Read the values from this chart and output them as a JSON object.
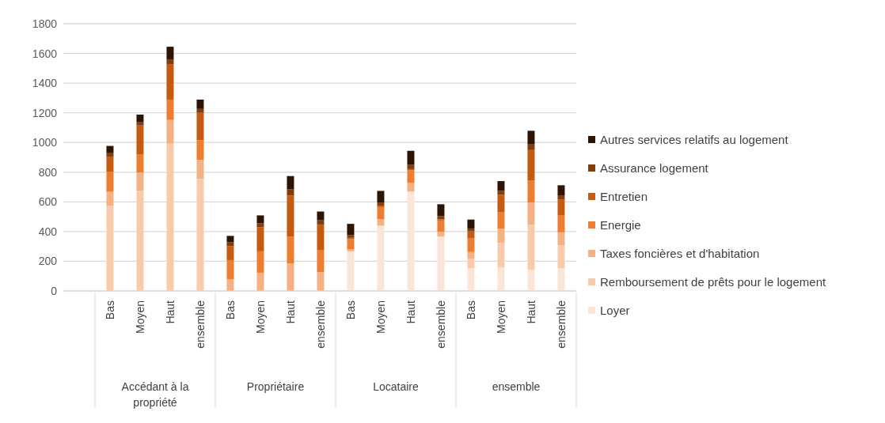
{
  "chart_data": {
    "type": "bar",
    "stacked": true,
    "categories": [
      "Bas",
      "Moyen",
      "Haut",
      "ensemble",
      "Bas",
      "Moyen",
      "Haut",
      "ensemble",
      "Bas",
      "Moyen",
      "Haut",
      "ensemble",
      "Bas",
      "Moyen",
      "Haut",
      "ensemble"
    ],
    "annotations": [
      "Accédant à la propriété",
      "Propriétaire",
      "Locataire",
      "ensemble"
    ],
    "series": [
      {
        "name": "Loyer",
        "color": "#fbe5d6",
        "values": [
          0,
          0,
          0,
          0,
          0,
          0,
          0,
          0,
          267,
          440,
          669,
          367,
          154,
          159,
          144,
          154
        ]
      },
      {
        "name": "Remboursement de prêts pour le logement",
        "color": "#f8cbad",
        "values": [
          573,
          674,
          992,
          755,
          0,
          0,
          0,
          0,
          0,
          0,
          0,
          0,
          64,
          165,
          303,
          154
        ]
      },
      {
        "name": "Taxes foncières et d'habitation",
        "color": "#f4b183",
        "values": [
          95,
          123,
          160,
          127,
          80,
          123,
          185,
          128,
          14,
          43,
          58,
          31,
          44,
          95,
          149,
          87
        ]
      },
      {
        "name": "Energie",
        "color": "#ed7d31",
        "values": [
          134,
          121,
          137,
          133,
          128,
          144,
          182,
          149,
          69,
          82,
          85,
          77,
          95,
          111,
          147,
          116
        ]
      },
      {
        "name": "Entretien",
        "color": "#c55a11",
        "values": [
          100,
          197,
          239,
          185,
          93,
          163,
          276,
          168,
          8,
          10,
          9,
          8,
          45,
          118,
          206,
          106
        ]
      },
      {
        "name": "Assurance logement",
        "color": "#843c0c",
        "values": [
          26,
          21,
          29,
          26,
          28,
          26,
          41,
          31,
          18,
          21,
          28,
          21,
          19,
          26,
          38,
          27
        ]
      },
      {
        "name": "Autres services relatifs au logement",
        "color": "#2e1503",
        "values": [
          49,
          52,
          88,
          63,
          42,
          53,
          90,
          59,
          76,
          78,
          95,
          80,
          60,
          66,
          92,
          68
        ]
      }
    ],
    "ylim": [
      0,
      1800
    ],
    "yticks": [
      0,
      200,
      400,
      600,
      800,
      1000,
      1200,
      1400,
      1600,
      1800
    ],
    "grid": "y",
    "legend": "right"
  }
}
